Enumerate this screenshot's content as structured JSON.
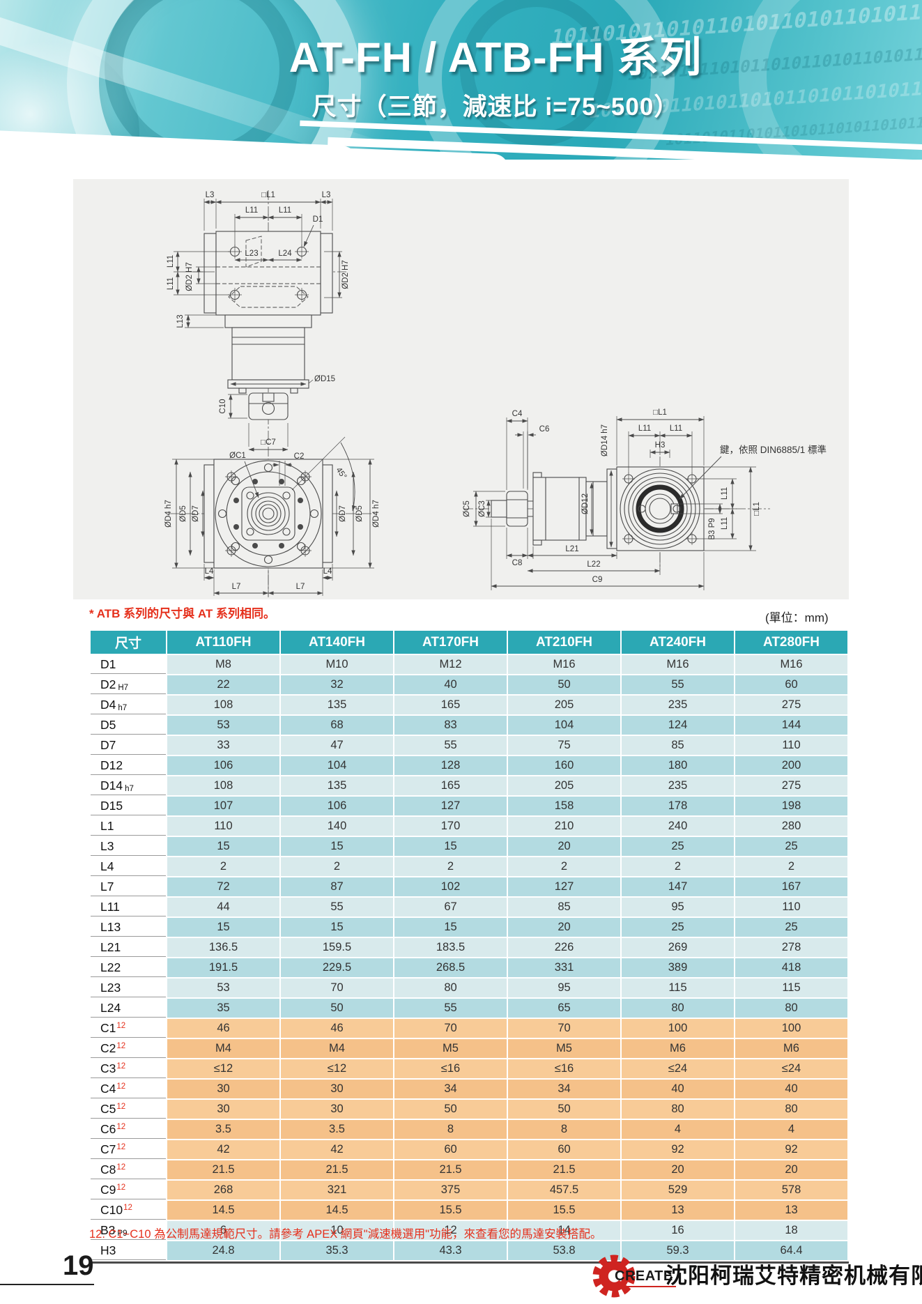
{
  "header": {
    "title": "AT-FH / ATB-FH 系列",
    "subtitle": "尺寸（三節，減速比 i=75~500）",
    "binary_pattern": "101101011010110101101011010110"
  },
  "notes": {
    "atb_note": "* ATB 系列的尺寸與 AT 系列相同。",
    "unit_note": "(單位：mm)",
    "footnote": "12. C1~C10 為公制馬達規範尺寸。請參考 APEX 網頁\"減速機選用\"功能，來查看您的馬達安裝搭配。"
  },
  "drawing": {
    "key_note": "鍵，依照 DIN6885/1 標準",
    "labels": {
      "L3": "L3",
      "L1sq": "□L1",
      "L11": "L11",
      "D1": "D1",
      "L23": "L23",
      "L24": "L24",
      "D2H7": "ØD2 H7",
      "L13": "L13",
      "D15": "ØD15",
      "C10": "C10",
      "C7sq": "□C7",
      "C1": "ØC1",
      "C2": "C2",
      "deg45": "45°",
      "D4h7": "ØD4 h7",
      "D5": "ØD5",
      "D7": "ØD7",
      "L4": "L4",
      "L7": "L7",
      "C4": "C4",
      "C6": "C6",
      "H3": "H3",
      "D14h7": "ØD14 h7",
      "D12": "ØD12",
      "C5": "ØC5",
      "C3": "ØC3",
      "B3P9": "B3 P9",
      "C8": "C8",
      "L21": "L21",
      "L22": "L22",
      "C9": "C9"
    }
  },
  "table": {
    "columns": [
      "尺寸",
      "AT110FH",
      "AT140FH",
      "AT170FH",
      "AT210FH",
      "AT240FH",
      "AT280FH"
    ],
    "rows": [
      {
        "label": "D1",
        "tol": "",
        "sup": "",
        "band": "light",
        "values": [
          "M8",
          "M10",
          "M12",
          "M16",
          "M16",
          "M16"
        ]
      },
      {
        "label": "D2",
        "tol": "H7",
        "sup": "",
        "band": "mid",
        "values": [
          "22",
          "32",
          "40",
          "50",
          "55",
          "60"
        ]
      },
      {
        "label": "D4",
        "tol": "h7",
        "sup": "",
        "band": "light",
        "values": [
          "108",
          "135",
          "165",
          "205",
          "235",
          "275"
        ]
      },
      {
        "label": "D5",
        "tol": "",
        "sup": "",
        "band": "mid",
        "values": [
          "53",
          "68",
          "83",
          "104",
          "124",
          "144"
        ]
      },
      {
        "label": "D7",
        "tol": "",
        "sup": "",
        "band": "light",
        "values": [
          "33",
          "47",
          "55",
          "75",
          "85",
          "110"
        ]
      },
      {
        "label": "D12",
        "tol": "",
        "sup": "",
        "band": "mid",
        "values": [
          "106",
          "104",
          "128",
          "160",
          "180",
          "200"
        ]
      },
      {
        "label": "D14",
        "tol": "h7",
        "sup": "",
        "band": "light",
        "values": [
          "108",
          "135",
          "165",
          "205",
          "235",
          "275"
        ]
      },
      {
        "label": "D15",
        "tol": "",
        "sup": "",
        "band": "mid",
        "values": [
          "107",
          "106",
          "127",
          "158",
          "178",
          "198"
        ]
      },
      {
        "label": "L1",
        "tol": "",
        "sup": "",
        "band": "light",
        "values": [
          "110",
          "140",
          "170",
          "210",
          "240",
          "280"
        ]
      },
      {
        "label": "L3",
        "tol": "",
        "sup": "",
        "band": "mid",
        "values": [
          "15",
          "15",
          "15",
          "20",
          "25",
          "25"
        ]
      },
      {
        "label": "L4",
        "tol": "",
        "sup": "",
        "band": "light",
        "values": [
          "2",
          "2",
          "2",
          "2",
          "2",
          "2"
        ]
      },
      {
        "label": "L7",
        "tol": "",
        "sup": "",
        "band": "mid",
        "values": [
          "72",
          "87",
          "102",
          "127",
          "147",
          "167"
        ]
      },
      {
        "label": "L11",
        "tol": "",
        "sup": "",
        "band": "light",
        "values": [
          "44",
          "55",
          "67",
          "85",
          "95",
          "110"
        ]
      },
      {
        "label": "L13",
        "tol": "",
        "sup": "",
        "band": "mid",
        "values": [
          "15",
          "15",
          "15",
          "20",
          "25",
          "25"
        ]
      },
      {
        "label": "L21",
        "tol": "",
        "sup": "",
        "band": "light",
        "values": [
          "136.5",
          "159.5",
          "183.5",
          "226",
          "269",
          "278"
        ]
      },
      {
        "label": "L22",
        "tol": "",
        "sup": "",
        "band": "mid",
        "values": [
          "191.5",
          "229.5",
          "268.5",
          "331",
          "389",
          "418"
        ]
      },
      {
        "label": "L23",
        "tol": "",
        "sup": "",
        "band": "light",
        "values": [
          "53",
          "70",
          "80",
          "95",
          "115",
          "115"
        ]
      },
      {
        "label": "L24",
        "tol": "",
        "sup": "",
        "band": "mid",
        "values": [
          "35",
          "50",
          "55",
          "65",
          "80",
          "80"
        ]
      },
      {
        "label": "C1",
        "tol": "",
        "sup": "12",
        "band": "orangeLight",
        "values": [
          "46",
          "46",
          "70",
          "70",
          "100",
          "100"
        ]
      },
      {
        "label": "C2",
        "tol": "",
        "sup": "12",
        "band": "orangeMid",
        "values": [
          "M4",
          "M4",
          "M5",
          "M5",
          "M6",
          "M6"
        ]
      },
      {
        "label": "C3",
        "tol": "",
        "sup": "12",
        "band": "orangeLight",
        "values": [
          "≤12",
          "≤12",
          "≤16",
          "≤16",
          "≤24",
          "≤24"
        ]
      },
      {
        "label": "C4",
        "tol": "",
        "sup": "12",
        "band": "orangeMid",
        "values": [
          "30",
          "30",
          "34",
          "34",
          "40",
          "40"
        ]
      },
      {
        "label": "C5",
        "tol": "",
        "sup": "12",
        "band": "orangeLight",
        "values": [
          "30",
          "30",
          "50",
          "50",
          "80",
          "80"
        ]
      },
      {
        "label": "C6",
        "tol": "",
        "sup": "12",
        "band": "orangeMid",
        "values": [
          "3.5",
          "3.5",
          "8",
          "8",
          "4",
          "4"
        ]
      },
      {
        "label": "C7",
        "tol": "",
        "sup": "12",
        "band": "orangeLight",
        "values": [
          "42",
          "42",
          "60",
          "60",
          "92",
          "92"
        ]
      },
      {
        "label": "C8",
        "tol": "",
        "sup": "12",
        "band": "orangeMid",
        "values": [
          "21.5",
          "21.5",
          "21.5",
          "21.5",
          "20",
          "20"
        ]
      },
      {
        "label": "C9",
        "tol": "",
        "sup": "12",
        "band": "orangeLight",
        "values": [
          "268",
          "321",
          "375",
          "457.5",
          "529",
          "578"
        ]
      },
      {
        "label": "C10",
        "tol": "",
        "sup": "12",
        "band": "orangeMid",
        "values": [
          "14.5",
          "14.5",
          "15.5",
          "15.5",
          "13",
          "13"
        ]
      },
      {
        "label": "B3",
        "tol": "P9",
        "sup": "",
        "band": "light",
        "values": [
          "6",
          "10",
          "12",
          "14",
          "16",
          "18"
        ]
      },
      {
        "label": "H3",
        "tol": "",
        "sup": "",
        "band": "mid",
        "values": [
          "24.8",
          "35.3",
          "43.3",
          "53.8",
          "59.3",
          "64.4"
        ]
      }
    ]
  },
  "footer": {
    "page_number": "19",
    "logo_text": "CREATE",
    "company": "沈阳柯瑞艾特精密机械有限公司"
  }
}
